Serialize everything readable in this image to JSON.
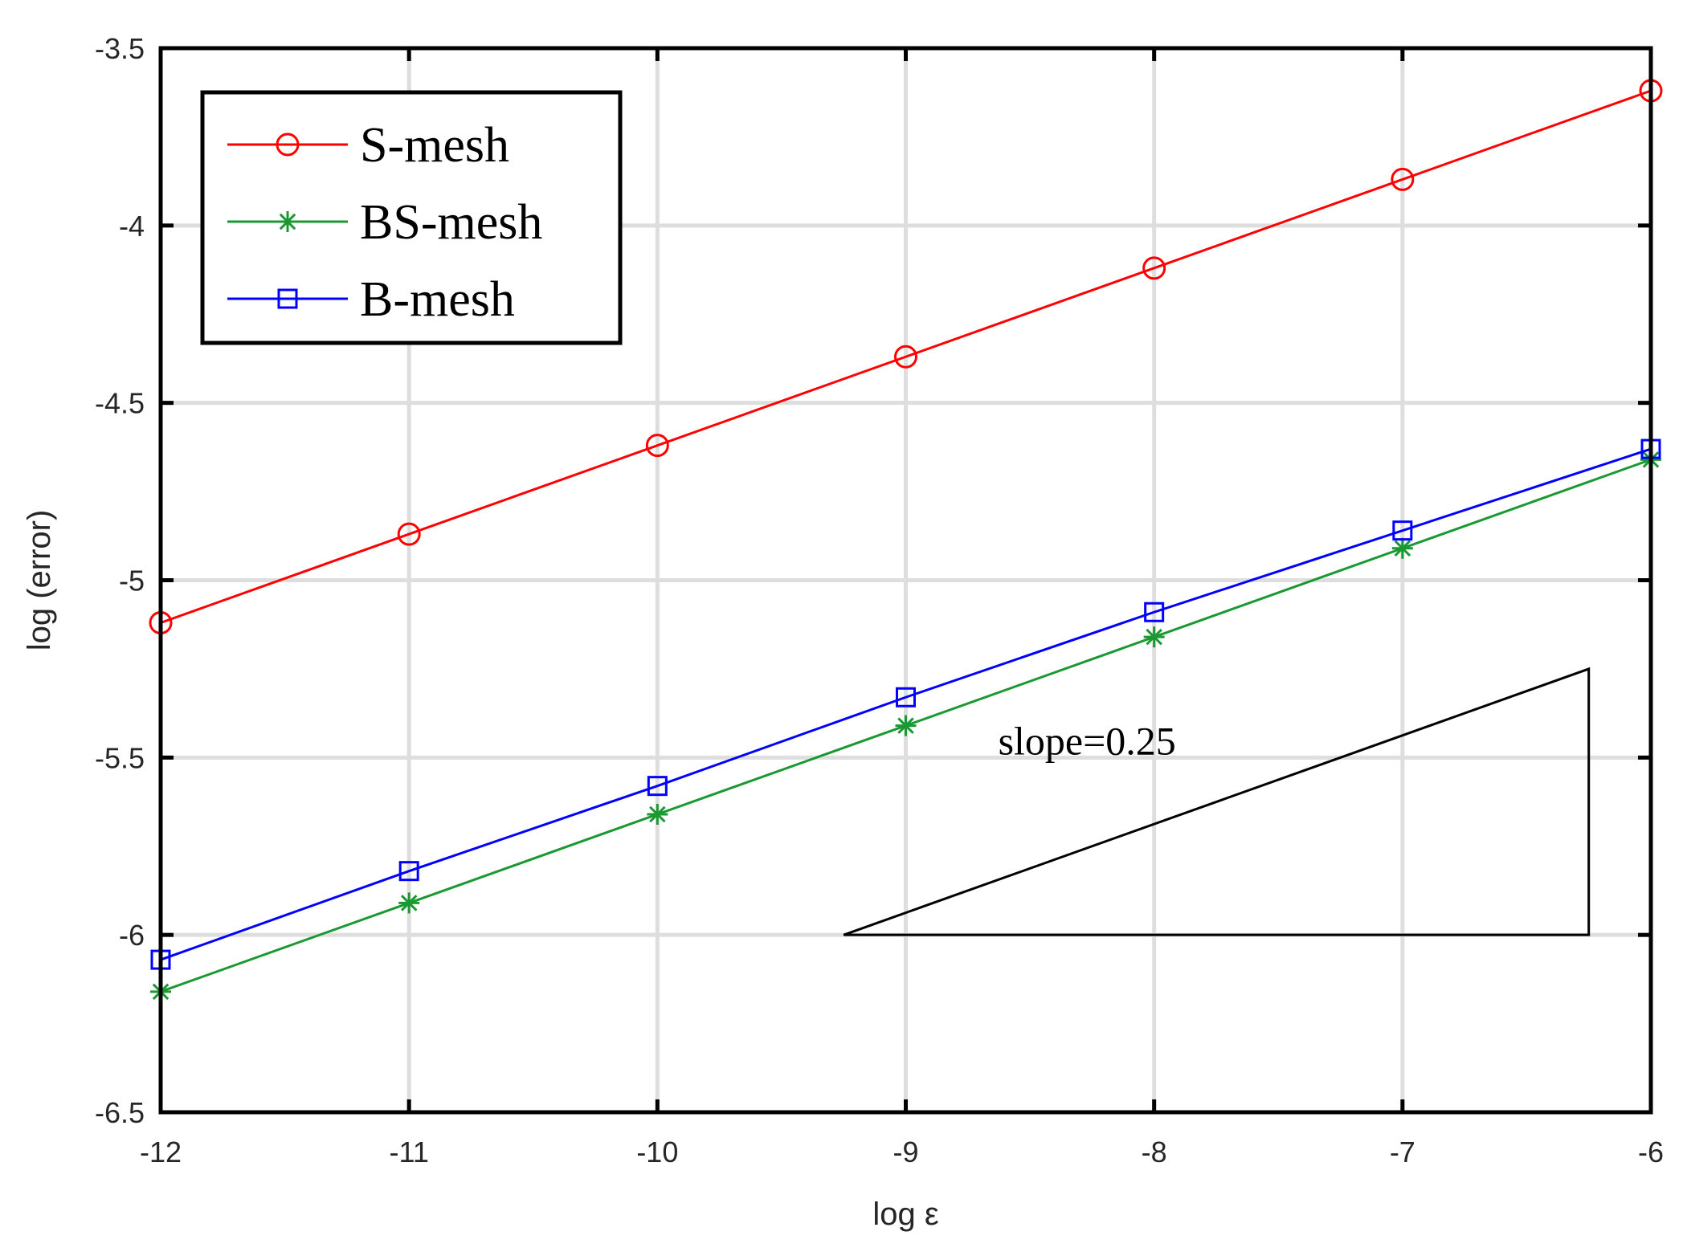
{
  "chart_data": {
    "type": "line",
    "title": "",
    "xlabel": "log ε",
    "ylabel": "log (error)",
    "xlim": [
      -12,
      -6
    ],
    "ylim": [
      -6.5,
      -3.5
    ],
    "xticks": [
      -12,
      -11,
      -10,
      -9,
      -8,
      -7,
      -6
    ],
    "yticks": [
      -6.5,
      -6,
      -5.5,
      -5,
      -4.5,
      -4,
      -3.5
    ],
    "xtick_labels": [
      "-12",
      "-11",
      "-10",
      "-9",
      "-8",
      "-7",
      "-6"
    ],
    "ytick_labels": [
      "-6.5",
      "-6",
      "-5.5",
      "-5",
      "-4.5",
      "-4",
      "-3.5"
    ],
    "grid": true,
    "legend_position": "top-left",
    "x": [
      -12,
      -11,
      -10,
      -9,
      -8,
      -7,
      -6
    ],
    "series": [
      {
        "name": "S-mesh",
        "color": "#ff0000",
        "marker": "circle",
        "values": [
          -5.12,
          -4.87,
          -4.62,
          -4.37,
          -4.12,
          -3.87,
          -3.62
        ]
      },
      {
        "name": "BS-mesh",
        "color": "#1a9933",
        "marker": "asterisk",
        "values": [
          -6.16,
          -5.91,
          -5.66,
          -5.41,
          -5.16,
          -4.91,
          -4.66
        ]
      },
      {
        "name": "B-mesh",
        "color": "#0000ff",
        "marker": "square",
        "values": [
          -6.07,
          -5.82,
          -5.58,
          -5.33,
          -5.09,
          -4.86,
          -4.63
        ]
      }
    ],
    "annotations": [
      {
        "text": "slope=0.25",
        "at": [
          -8.27,
          -5.45
        ],
        "triangle": [
          [
            -9.25,
            -6.0
          ],
          [
            -6.25,
            -6.0
          ],
          [
            -6.25,
            -5.25
          ]
        ]
      }
    ]
  }
}
